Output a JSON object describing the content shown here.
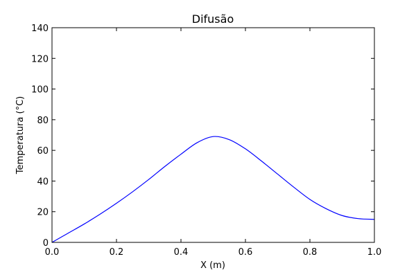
{
  "chart_data": {
    "type": "line",
    "title": "Difusão",
    "xlabel": "X (m)",
    "ylabel": "Temperatura (°C)",
    "xlim": [
      0.0,
      1.0
    ],
    "ylim": [
      0,
      140
    ],
    "x_ticks": [
      "0.0",
      "0.2",
      "0.4",
      "0.6",
      "0.8",
      "1.0"
    ],
    "y_ticks": [
      "0",
      "20",
      "40",
      "60",
      "80",
      "100",
      "120",
      "140"
    ],
    "grid": false,
    "legend": "none",
    "series": [
      {
        "color": "#0000ff",
        "x": [
          0.0,
          0.05,
          0.1,
          0.15,
          0.2,
          0.25,
          0.3,
          0.35,
          0.4,
          0.45,
          0.5,
          0.55,
          0.6,
          0.65,
          0.7,
          0.75,
          0.8,
          0.85,
          0.9,
          0.95,
          1.0
        ],
        "y": [
          0,
          6,
          12,
          18.5,
          25.5,
          33,
          41,
          49.5,
          57.5,
          65,
          69,
          67,
          61,
          53,
          44.5,
          36,
          28,
          22,
          17.5,
          15.5,
          15
        ]
      }
    ]
  }
}
